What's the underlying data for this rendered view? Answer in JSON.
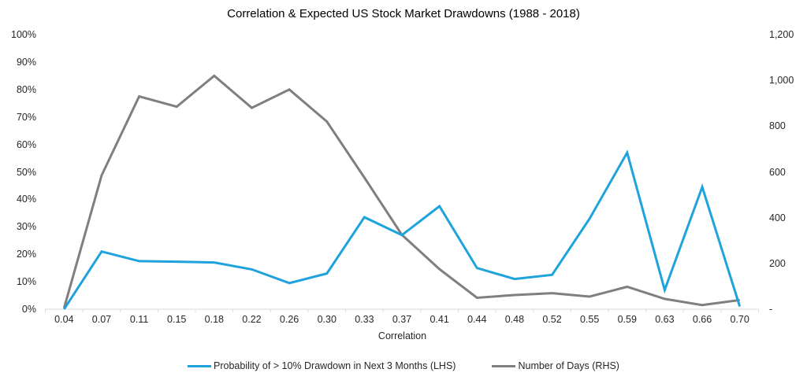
{
  "chart_data": {
    "type": "line",
    "title": "Correlation & Expected US Stock Market Drawdowns (1988 - 2018)",
    "xlabel": "Correlation",
    "categories": [
      "0.04",
      "0.07",
      "0.11",
      "0.15",
      "0.18",
      "0.22",
      "0.26",
      "0.30",
      "0.33",
      "0.37",
      "0.41",
      "0.44",
      "0.48",
      "0.52",
      "0.55",
      "0.59",
      "0.63",
      "0.66",
      "0.70"
    ],
    "left_axis": {
      "min": 0,
      "max": 100,
      "ticks": [
        "100%",
        "90%",
        "80%",
        "70%",
        "60%",
        "50%",
        "40%",
        "30%",
        "20%",
        "10%",
        "0%"
      ]
    },
    "right_axis": {
      "min": 0,
      "max": 1200,
      "ticks": [
        "1,200",
        "1,000",
        "800",
        "600",
        "400",
        "200",
        "-"
      ]
    },
    "grid": false,
    "legend_position": "bottom",
    "series": [
      {
        "name": "Probability of > 10% Drawdown in Next 3 Months (LHS)",
        "axis": "left",
        "color": "#1FA3DC",
        "values": [
          0,
          21,
          17.5,
          17.3,
          17,
          14.5,
          9.5,
          13,
          33.5,
          27,
          37.5,
          15,
          11,
          12.5,
          33,
          57,
          7,
          44.5,
          1
        ]
      },
      {
        "name": "Number of Days (RHS)",
        "axis": "right",
        "color": "#7F7F7F",
        "values": [
          5,
          585,
          930,
          885,
          1020,
          880,
          960,
          820,
          575,
          325,
          175,
          50,
          62,
          70,
          55,
          98,
          45,
          18,
          40
        ]
      }
    ],
    "axis_color": "#D9D9D9",
    "text_color": "#262626"
  }
}
